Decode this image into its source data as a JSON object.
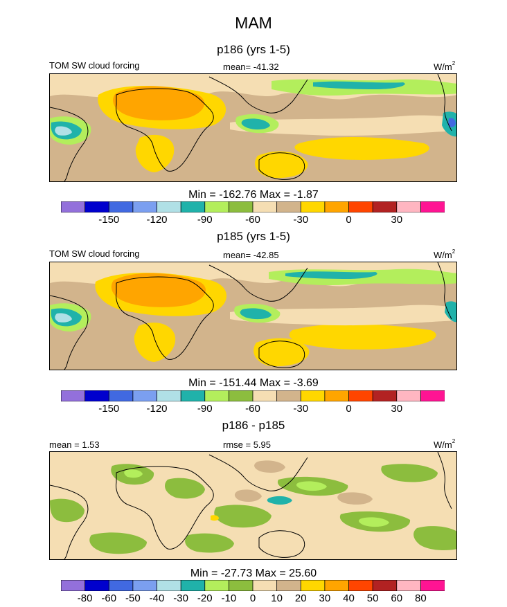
{
  "figure": {
    "title": "MAM"
  },
  "chart_data": [
    {
      "type": "heatmap",
      "title": "p186 (yrs 1-5)",
      "variable_label": "TOM SW cloud forcing",
      "mean_text": "mean= -41.32",
      "units_base": "W/m",
      "units_sup": "2",
      "stats_text": "Min = -162.76 Max =  -1.87",
      "colorbar": {
        "colors": [
          "#9370db",
          "#0000cd",
          "#4169e1",
          "#7b9ff0",
          "#b0e0e6",
          "#20b2aa",
          "#b3ee5c",
          "#8cbd3e",
          "#f5deb3",
          "#d2b48c",
          "#ffd700",
          "#ffa500",
          "#ff4500",
          "#b22222",
          "#ffb6c1",
          "#ff1493"
        ],
        "tick_labels": [
          "-150",
          "-120",
          "-90",
          "-60",
          "-30",
          "0",
          "30"
        ],
        "tick_boundary_index": [
          2,
          4,
          6,
          8,
          10,
          12,
          14
        ]
      },
      "base_color": "#d2b48c"
    },
    {
      "type": "heatmap",
      "title": "p185 (yrs 1-5)",
      "variable_label": "TOM SW cloud forcing",
      "mean_text": "mean= -42.85",
      "units_base": "W/m",
      "units_sup": "2",
      "stats_text": "Min = -151.44 Max =  -3.69",
      "colorbar": {
        "colors": [
          "#9370db",
          "#0000cd",
          "#4169e1",
          "#7b9ff0",
          "#b0e0e6",
          "#20b2aa",
          "#b3ee5c",
          "#8cbd3e",
          "#f5deb3",
          "#d2b48c",
          "#ffd700",
          "#ffa500",
          "#ff4500",
          "#b22222",
          "#ffb6c1",
          "#ff1493"
        ],
        "tick_labels": [
          "-150",
          "-120",
          "-90",
          "-60",
          "-30",
          "0",
          "30"
        ],
        "tick_boundary_index": [
          2,
          4,
          6,
          8,
          10,
          12,
          14
        ]
      },
      "base_color": "#d2b48c"
    },
    {
      "type": "heatmap",
      "title": "p186 - p185",
      "mean_text": "mean =   1.53",
      "rmse_text": "rmse =   5.95",
      "units_base": "W/m",
      "units_sup": "2",
      "stats_text": "Min = -27.73 Max =  25.60",
      "colorbar": {
        "colors": [
          "#9370db",
          "#0000cd",
          "#4169e1",
          "#7b9ff0",
          "#b0e0e6",
          "#20b2aa",
          "#b3ee5c",
          "#8cbd3e",
          "#f5deb3",
          "#d2b48c",
          "#ffd700",
          "#ffa500",
          "#ff4500",
          "#b22222",
          "#ffb6c1",
          "#ff1493"
        ],
        "tick_labels": [
          "-80",
          "-60",
          "-50",
          "-40",
          "-30",
          "-20",
          "-10",
          "0",
          "10",
          "20",
          "30",
          "40",
          "50",
          "60",
          "80"
        ],
        "tick_boundary_index": [
          1,
          2,
          3,
          4,
          5,
          6,
          7,
          8,
          9,
          10,
          11,
          12,
          13,
          14,
          15
        ]
      },
      "base_color": "#f5deb3"
    }
  ]
}
